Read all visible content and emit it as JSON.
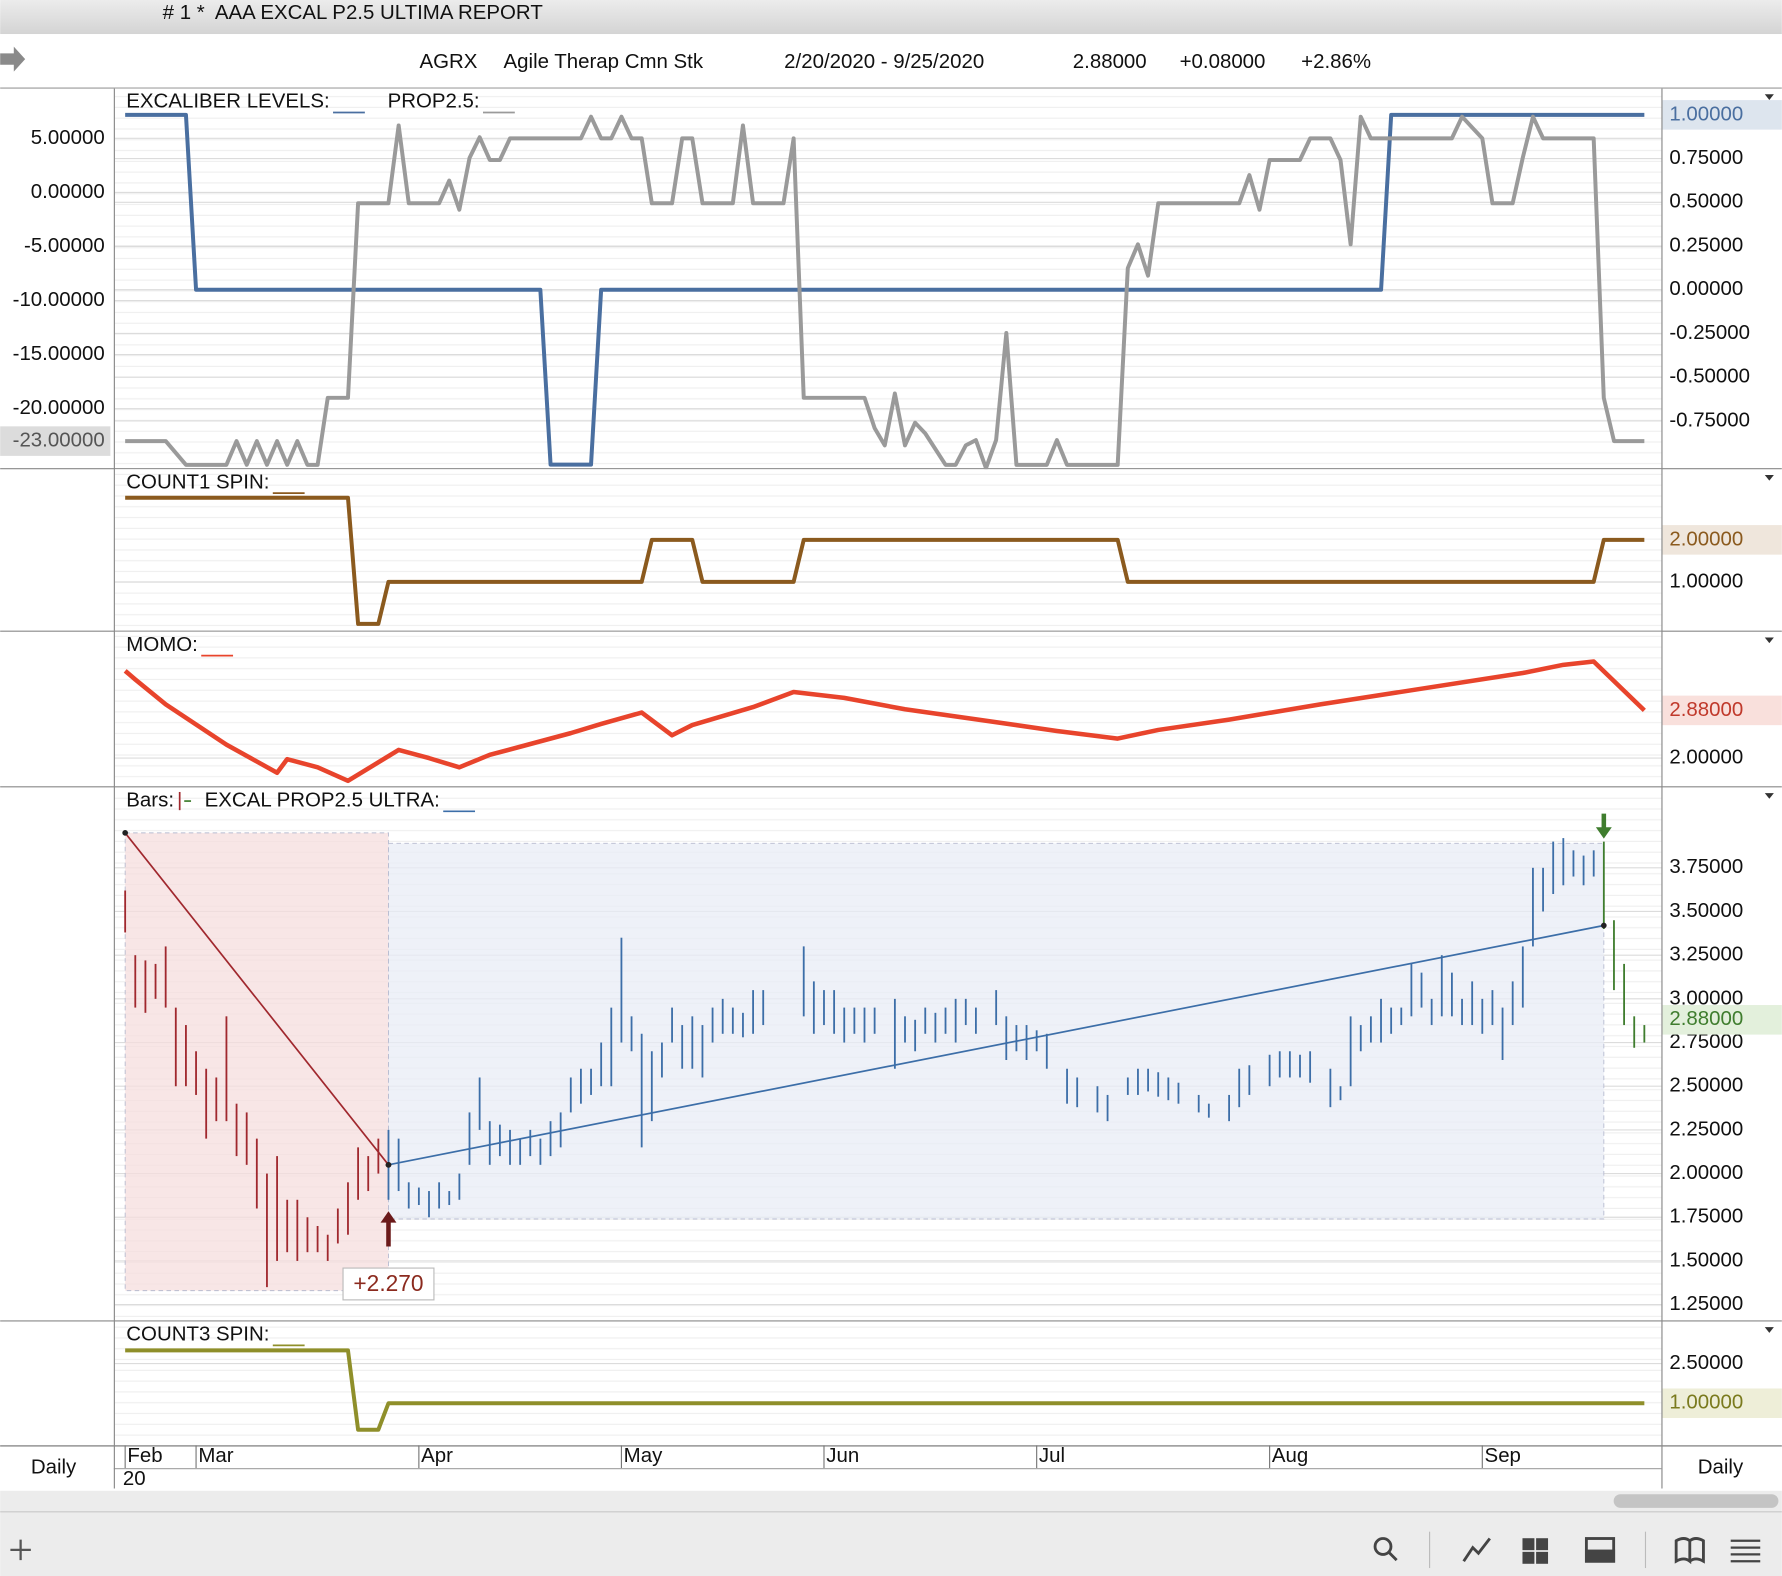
{
  "window_title": "# 1 *  AAA EXCAL P2.5 ULTIMA REPORT",
  "header": {
    "symbol": "AGRX",
    "name": "Agile Therap Cmn Stk",
    "range": "2/20/2020 - 9/25/2020",
    "last": "2.88000",
    "change": "+0.08000",
    "percent": "+2.86%"
  },
  "periodicity_left": "Daily",
  "periodicity_right": "Daily",
  "x_axis": {
    "xlim": [
      0,
      150
    ],
    "xticks": [
      {
        "value": 0,
        "label": "Feb"
      },
      {
        "value": 7,
        "label": "Mar"
      },
      {
        "value": 29,
        "label": "Apr"
      },
      {
        "value": 49,
        "label": "May"
      },
      {
        "value": 69,
        "label": "Jun"
      },
      {
        "value": 90,
        "label": "Jul"
      },
      {
        "value": 113,
        "label": "Aug"
      },
      {
        "value": 134,
        "label": "Sep"
      }
    ],
    "year_label": "20"
  },
  "chart_data": [
    {
      "type": "line",
      "y_axis_side": "left",
      "ylim": [
        -25.5,
        9.6
      ],
      "yticks": [
        {
          "value": 5,
          "label": "5.00000"
        },
        {
          "value": 0,
          "label": "0.00000"
        },
        {
          "value": -5,
          "label": "-5.00000"
        },
        {
          "value": -10,
          "label": "-10.00000"
        },
        {
          "value": -15,
          "label": "-15.00000"
        },
        {
          "value": -20,
          "label": "-20.00000"
        }
      ],
      "y2lim": [
        -1.02,
        1.15
      ],
      "y2ticks": [
        {
          "value": 0.75,
          "label": "0.75000"
        },
        {
          "value": 0.5,
          "label": "0.50000"
        },
        {
          "value": 0.25,
          "label": "0.25000"
        },
        {
          "value": 0,
          "label": "0.00000"
        },
        {
          "value": -0.25,
          "label": "-0.25000"
        },
        {
          "value": -0.5,
          "label": "-0.50000"
        },
        {
          "value": -0.75,
          "label": "-0.75000"
        }
      ],
      "last_labels": [
        {
          "value": -23,
          "label": "-23.00000",
          "axis": "y",
          "color": "#555555",
          "background": "#dcdcdc"
        },
        {
          "value": 1,
          "label": "1.00000",
          "axis": "y2",
          "color": "#4a6fa0",
          "background": "#dde5ee"
        }
      ],
      "series": [
        {
          "name": "EXCALIBER LEVELS:",
          "color": "#4a6fa0",
          "axis": "y2",
          "x": [
            0,
            6,
            7,
            41,
            42,
            46,
            47,
            124,
            125,
            150
          ],
          "values": [
            1,
            1,
            0,
            0,
            -1,
            -1,
            0,
            0,
            1,
            1
          ]
        },
        {
          "name": "PROP2.5:",
          "color": "#9a9a9a",
          "x": [
            0,
            4,
            6,
            10,
            11,
            12,
            13,
            14,
            15,
            16,
            17,
            18,
            19,
            20,
            22,
            23,
            26,
            27,
            28,
            31,
            32,
            33,
            34,
            35,
            36,
            37,
            38,
            45,
            46,
            47,
            48,
            49,
            50,
            51,
            52,
            54,
            55,
            56,
            57,
            60,
            61,
            62,
            65,
            66,
            67,
            73,
            74,
            75,
            76,
            77,
            78,
            79,
            81,
            82,
            83,
            84,
            85,
            86,
            87,
            88,
            91,
            92,
            93,
            98,
            99,
            100,
            101,
            102,
            110,
            111,
            112,
            113,
            116,
            117,
            119,
            120,
            121,
            122,
            123,
            131,
            132,
            134,
            135,
            137,
            138,
            139,
            140,
            145,
            146,
            147,
            150
          ],
          "values": [
            -23,
            -23,
            -25.2,
            -25.2,
            -23,
            -25.2,
            -23,
            -25.2,
            -23,
            -25.2,
            -23,
            -25.2,
            -25.2,
            -19,
            -19,
            -1,
            -1,
            6.2,
            -1,
            -1,
            1.1,
            -1.6,
            3.2,
            5.1,
            3,
            3,
            5,
            5,
            7,
            5,
            5,
            7,
            5,
            5,
            -1,
            -1,
            5,
            5,
            -1,
            -1,
            6.2,
            -1,
            -1,
            5,
            -19,
            -19,
            -21.8,
            -23.4,
            -18.6,
            -23.4,
            -21.3,
            -22.3,
            -25.2,
            -25.2,
            -23.4,
            -22.9,
            -25.5,
            -22.9,
            -13,
            -25.2,
            -25.2,
            -22.9,
            -25.2,
            -25.2,
            -7,
            -4.8,
            -7.7,
            -1,
            -1,
            1.6,
            -1.6,
            3,
            3,
            5,
            5,
            3,
            -4.8,
            7,
            5,
            5,
            7,
            5,
            -1,
            -1,
            3.2,
            7,
            5,
            5,
            -19,
            -23,
            -23
          ]
        }
      ]
    },
    {
      "type": "line",
      "y_axis_side": "right",
      "ylim": [
        -0.16,
        3.68
      ],
      "yticks": [
        {
          "value": 1,
          "label": "1.00000"
        }
      ],
      "last_labels": [
        {
          "value": 2,
          "label": "2.00000",
          "axis": "y",
          "color": "#8b5a1e",
          "background": "#efe6dc"
        }
      ],
      "series": [
        {
          "name": "COUNT1 SPIN:",
          "color": "#8b5a1e",
          "x": [
            0,
            22,
            23,
            25,
            26,
            51,
            52,
            56,
            57,
            66,
            67,
            98,
            99,
            145,
            146,
            150
          ],
          "values": [
            3,
            3,
            0,
            0,
            1,
            1,
            2,
            2,
            1,
            1,
            2,
            2,
            1,
            1,
            2,
            2
          ]
        }
      ]
    },
    {
      "type": "line",
      "y_axis_side": "right",
      "ylim": [
        1.48,
        4.33
      ],
      "yticks": [
        {
          "value": 2,
          "label": "2.00000"
        }
      ],
      "last_labels": [
        {
          "value": 2.88,
          "label": "2.88000",
          "axis": "y",
          "color": "#c0392b",
          "background": "#f9e0dc"
        }
      ],
      "series": [
        {
          "name": "MOMO:",
          "color": "#e8442c",
          "x": [
            0,
            1,
            4,
            10,
            15,
            16,
            19,
            22,
            27,
            30,
            33,
            36,
            39,
            44,
            47,
            51,
            54,
            56,
            62,
            66,
            71,
            77,
            85,
            92,
            98,
            102,
            109,
            118,
            128,
            138,
            142,
            145,
            150
          ],
          "values": [
            3.61,
            3.45,
            2.99,
            2.25,
            1.73,
            1.98,
            1.83,
            1.58,
            2.15,
            2,
            1.83,
            2.06,
            2.21,
            2.46,
            2.63,
            2.84,
            2.42,
            2.61,
            2.94,
            3.22,
            3.11,
            2.9,
            2.69,
            2.5,
            2.36,
            2.52,
            2.71,
            2.99,
            3.28,
            3.57,
            3.72,
            3.78,
            2.88
          ]
        }
      ]
    },
    {
      "type": "hilo",
      "y_axis_side": "right",
      "name": "Bars:",
      "ylim": [
        1.16,
        4.21
      ],
      "yticks": [
        {
          "value": 3.75,
          "label": "3.75000"
        },
        {
          "value": 3.5,
          "label": "3.50000"
        },
        {
          "value": 3.25,
          "label": "3.25000"
        },
        {
          "value": 3,
          "label": "3.00000"
        },
        {
          "value": 2.75,
          "label": "2.75000"
        },
        {
          "value": 2.5,
          "label": "2.50000"
        },
        {
          "value": 2.25,
          "label": "2.25000"
        },
        {
          "value": 2,
          "label": "2.00000"
        },
        {
          "value": 1.75,
          "label": "1.75000"
        },
        {
          "value": 1.5,
          "label": "1.50000"
        },
        {
          "value": 1.25,
          "label": "1.25000"
        }
      ],
      "last_labels": [
        {
          "value": 2.88,
          "label": "2.88000",
          "axis": "y",
          "color": "#3f7d2e",
          "background": "#e3f0dc"
        }
      ],
      "color_ranges": [
        {
          "from": 0,
          "color": "#a0282e"
        },
        {
          "from": 26,
          "color": "#3c6ea8"
        },
        {
          "from": 146,
          "color": "#3f7d2e"
        }
      ],
      "x": [
        0,
        1,
        2,
        3,
        4,
        5,
        6,
        7,
        8,
        9,
        10,
        11,
        12,
        13,
        14,
        15,
        16,
        17,
        18,
        19,
        20,
        21,
        22,
        23,
        24,
        25,
        26,
        27,
        28,
        29,
        30,
        31,
        32,
        33,
        34,
        35,
        36,
        37,
        38,
        39,
        40,
        41,
        42,
        43,
        44,
        45,
        46,
        47,
        48,
        49,
        50,
        51,
        52,
        53,
        54,
        55,
        56,
        57,
        58,
        59,
        60,
        61,
        62,
        63,
        67,
        68,
        69,
        70,
        71,
        72,
        73,
        74,
        76,
        77,
        78,
        79,
        80,
        81,
        82,
        83,
        84,
        86,
        87,
        88,
        89,
        90,
        91,
        93,
        94,
        96,
        97,
        99,
        100,
        101,
        102,
        103,
        104,
        106,
        107,
        109,
        110,
        111,
        113,
        114,
        115,
        116,
        117,
        119,
        120,
        121,
        122,
        123,
        124,
        125,
        126,
        127,
        128,
        129,
        130,
        131,
        132,
        133,
        134,
        135,
        136,
        137,
        138,
        139,
        140,
        141,
        142,
        143,
        144,
        145,
        146,
        147,
        148,
        149,
        150
      ],
      "high": [
        3.62,
        3.25,
        3.22,
        3.2,
        3.3,
        2.95,
        2.85,
        2.7,
        2.6,
        2.55,
        2.9,
        2.4,
        2.35,
        2.2,
        2.0,
        2.1,
        1.85,
        1.85,
        1.75,
        1.7,
        1.65,
        1.8,
        1.95,
        2.15,
        2.1,
        2.2,
        2.25,
        2.2,
        1.95,
        1.92,
        1.9,
        1.95,
        1.9,
        2.0,
        2.35,
        2.55,
        2.3,
        2.28,
        2.25,
        2.2,
        2.25,
        2.2,
        2.3,
        2.35,
        2.55,
        2.6,
        2.6,
        2.75,
        2.95,
        3.35,
        2.9,
        2.8,
        2.7,
        2.75,
        2.95,
        2.85,
        2.9,
        2.85,
        2.95,
        3.0,
        2.95,
        2.92,
        3.05,
        3.05,
        3.3,
        3.1,
        3.05,
        3.05,
        2.95,
        2.95,
        2.95,
        2.95,
        3.0,
        2.9,
        2.88,
        2.95,
        2.92,
        2.95,
        3.0,
        3.0,
        2.95,
        3.05,
        2.9,
        2.85,
        2.85,
        2.82,
        2.8,
        2.6,
        2.55,
        2.5,
        2.45,
        2.55,
        2.6,
        2.6,
        2.58,
        2.55,
        2.52,
        2.45,
        2.4,
        2.45,
        2.6,
        2.62,
        2.68,
        2.7,
        2.7,
        2.68,
        2.7,
        2.6,
        2.5,
        2.9,
        2.85,
        2.9,
        3.0,
        2.95,
        2.95,
        3.2,
        3.15,
        3.0,
        3.25,
        3.15,
        3.0,
        3.1,
        3.0,
        3.05,
        2.95,
        3.1,
        3.3,
        3.75,
        3.75,
        3.9,
        3.92,
        3.85,
        3.82,
        3.85,
        3.9,
        3.45,
        3.2,
        2.9,
        2.85
      ],
      "low": [
        3.38,
        2.95,
        2.92,
        3.0,
        2.95,
        2.5,
        2.5,
        2.45,
        2.2,
        2.3,
        2.3,
        2.1,
        2.05,
        1.8,
        1.35,
        1.5,
        1.55,
        1.5,
        1.55,
        1.55,
        1.5,
        1.6,
        1.65,
        1.85,
        1.9,
        2.0,
        1.85,
        1.9,
        1.8,
        1.82,
        1.75,
        1.8,
        1.82,
        1.85,
        2.05,
        2.25,
        2.05,
        2.1,
        2.05,
        2.05,
        2.1,
        2.05,
        2.1,
        2.15,
        2.35,
        2.4,
        2.45,
        2.5,
        2.5,
        2.75,
        2.7,
        2.15,
        2.3,
        2.55,
        2.75,
        2.6,
        2.6,
        2.55,
        2.75,
        2.8,
        2.8,
        2.78,
        2.8,
        2.85,
        2.9,
        2.8,
        2.85,
        2.8,
        2.75,
        2.8,
        2.75,
        2.8,
        2.6,
        2.75,
        2.7,
        2.8,
        2.75,
        2.8,
        2.75,
        2.85,
        2.8,
        2.85,
        2.65,
        2.7,
        2.65,
        2.7,
        2.6,
        2.4,
        2.38,
        2.35,
        2.3,
        2.45,
        2.45,
        2.47,
        2.44,
        2.42,
        2.4,
        2.35,
        2.32,
        2.3,
        2.38,
        2.45,
        2.5,
        2.55,
        2.55,
        2.55,
        2.52,
        2.38,
        2.42,
        2.5,
        2.7,
        2.75,
        2.75,
        2.8,
        2.85,
        2.9,
        2.95,
        2.85,
        2.9,
        2.9,
        2.85,
        2.85,
        2.8,
        2.85,
        2.65,
        2.85,
        2.95,
        3.3,
        3.5,
        3.6,
        3.65,
        3.7,
        3.65,
        3.7,
        3.4,
        3.05,
        2.85,
        2.72,
        2.75
      ],
      "zones": [
        {
          "x": [
            0,
            26
          ],
          "y": [
            1.33,
            3.95
          ],
          "color": "#f6dede"
        },
        {
          "x": [
            26,
            146
          ],
          "y": [
            1.74,
            3.89
          ],
          "color": "#e8ecf5"
        }
      ],
      "trendlines": [
        {
          "name": "EXCAL PROP2.5 ULTRA:",
          "color": "#3c6ea8",
          "x": [
            26,
            146
          ],
          "values": [
            2.05,
            3.42
          ]
        },
        {
          "color": "#a0282e",
          "x": [
            0,
            26
          ],
          "values": [
            3.95,
            2.05
          ]
        }
      ],
      "signals": [
        {
          "x": 26,
          "direction": "up",
          "color": "#6b1a1a"
        },
        {
          "x": 146,
          "direction": "down",
          "color": "#3f7d2e"
        }
      ],
      "annotation": {
        "text": "+2.270",
        "x": 26
      }
    },
    {
      "type": "line",
      "y_axis_side": "right",
      "ylim": [
        -0.59,
        4.09
      ],
      "yticks": [
        {
          "value": 2.5,
          "label": "2.50000"
        }
      ],
      "last_labels": [
        {
          "value": 1,
          "label": "1.00000",
          "axis": "y",
          "color": "#7a7a1e",
          "background": "#eeeed8"
        }
      ],
      "series": [
        {
          "name": "COUNT3 SPIN:",
          "color": "#8f8f2a",
          "x": [
            0,
            22,
            23,
            25,
            26,
            150
          ],
          "values": [
            3,
            3,
            0,
            0,
            1,
            1
          ]
        }
      ]
    }
  ]
}
